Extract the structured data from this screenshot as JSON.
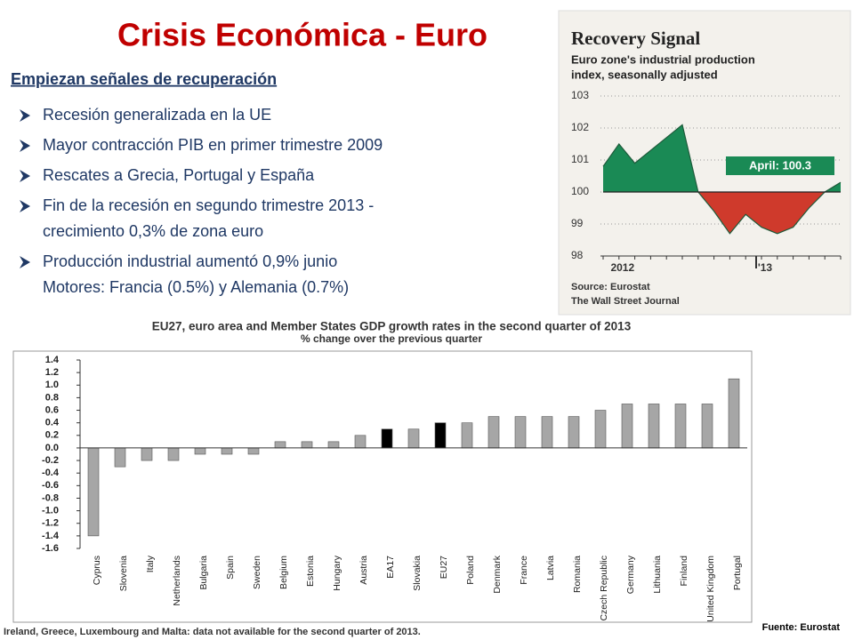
{
  "title": "Crisis Económica - Euro",
  "subtitle": "Empiezan señales de recuperación",
  "bullets": [
    [
      "Recesión generalizada en la UE"
    ],
    [
      "Mayor contracción PIB en primer trimestre 2009"
    ],
    [
      "Rescates a Grecia, Portugal y España"
    ],
    [
      "Fin de la recesión en segundo trimestre 2013 -",
      "crecimiento 0,3% de zona euro"
    ],
    [
      "Producción industrial aumentó 0,9% junio",
      "Motores: Francia (0.5%) y Alemania (0.7%)"
    ]
  ],
  "source": "Fuente: Eurostat",
  "chart_data": [
    {
      "type": "area",
      "title": "Recovery Signal",
      "subtitle": [
        "Euro zone's industrial production",
        "index, seasonally adjusted"
      ],
      "categories": [
        null,
        "2012",
        null,
        null,
        null,
        null,
        null,
        null,
        null,
        null,
        "'13",
        null,
        null,
        null,
        null,
        null
      ],
      "values": [
        100.8,
        101.5,
        100.9,
        101.3,
        101.7,
        102.1,
        100.0,
        99.4,
        98.7,
        99.3,
        98.9,
        98.7,
        98.9,
        99.5,
        100.0,
        100.3
      ],
      "baseline": 100,
      "color_above": "#1a8a55",
      "color_below": "#cf3a2c",
      "ylim": [
        98,
        103
      ],
      "yticks": [
        98,
        99,
        100,
        101,
        102,
        103
      ],
      "grid": true,
      "annotation": "April: 100.3",
      "source": [
        "Source: Eurostat",
        "The Wall Street Journal"
      ]
    },
    {
      "type": "bar",
      "title": "EU27, euro area and Member States GDP growth rates in the second quarter of 2013",
      "subtitle": "% change over the previous quarter",
      "categories": [
        "Cyprus",
        "Slovenia",
        "Italy",
        "Netherlands",
        "Bulgaria",
        "Spain",
        "Sweden",
        "Belgium",
        "Estonia",
        "Hungary",
        "Austria",
        "EA17",
        "Slovakia",
        "EU27",
        "Poland",
        "Denmark",
        "France",
        "Latvia",
        "Romania",
        "Czech Republic",
        "Germany",
        "Lithuania",
        "Finland",
        "United Kingdom",
        "Portugal"
      ],
      "values": [
        -1.4,
        -0.3,
        -0.2,
        -0.2,
        -0.1,
        -0.1,
        -0.1,
        0.1,
        0.1,
        0.1,
        0.2,
        0.3,
        0.3,
        0.4,
        0.4,
        0.5,
        0.5,
        0.5,
        0.5,
        0.6,
        0.7,
        0.7,
        0.7,
        0.7,
        1.1
      ],
      "colors": [
        "#a6a6a6",
        "#a6a6a6",
        "#a6a6a6",
        "#a6a6a6",
        "#a6a6a6",
        "#a6a6a6",
        "#a6a6a6",
        "#a6a6a6",
        "#a6a6a6",
        "#a6a6a6",
        "#a6a6a6",
        "#000000",
        "#a6a6a6",
        "#000000",
        "#a6a6a6",
        "#a6a6a6",
        "#a6a6a6",
        "#a6a6a6",
        "#a6a6a6",
        "#a6a6a6",
        "#a6a6a6",
        "#a6a6a6",
        "#a6a6a6",
        "#a6a6a6",
        "#a6a6a6"
      ],
      "ylim": [
        -1.6,
        1.4
      ],
      "yticks": [
        -1.6,
        -1.4,
        -1.2,
        {
          "value": -1,
          "label": "-1.0"
        },
        -0.8,
        -0.6,
        -0.4,
        -0.2,
        {
          "value": 0,
          "label": "0.0"
        },
        0.2,
        0.4,
        0.6,
        0.8,
        {
          "value": 1,
          "label": "1.0"
        },
        1.2,
        1.4
      ],
      "note": "Ireland, Greece, Luxembourg and Malta: data not available for the second quarter of 2013."
    }
  ]
}
